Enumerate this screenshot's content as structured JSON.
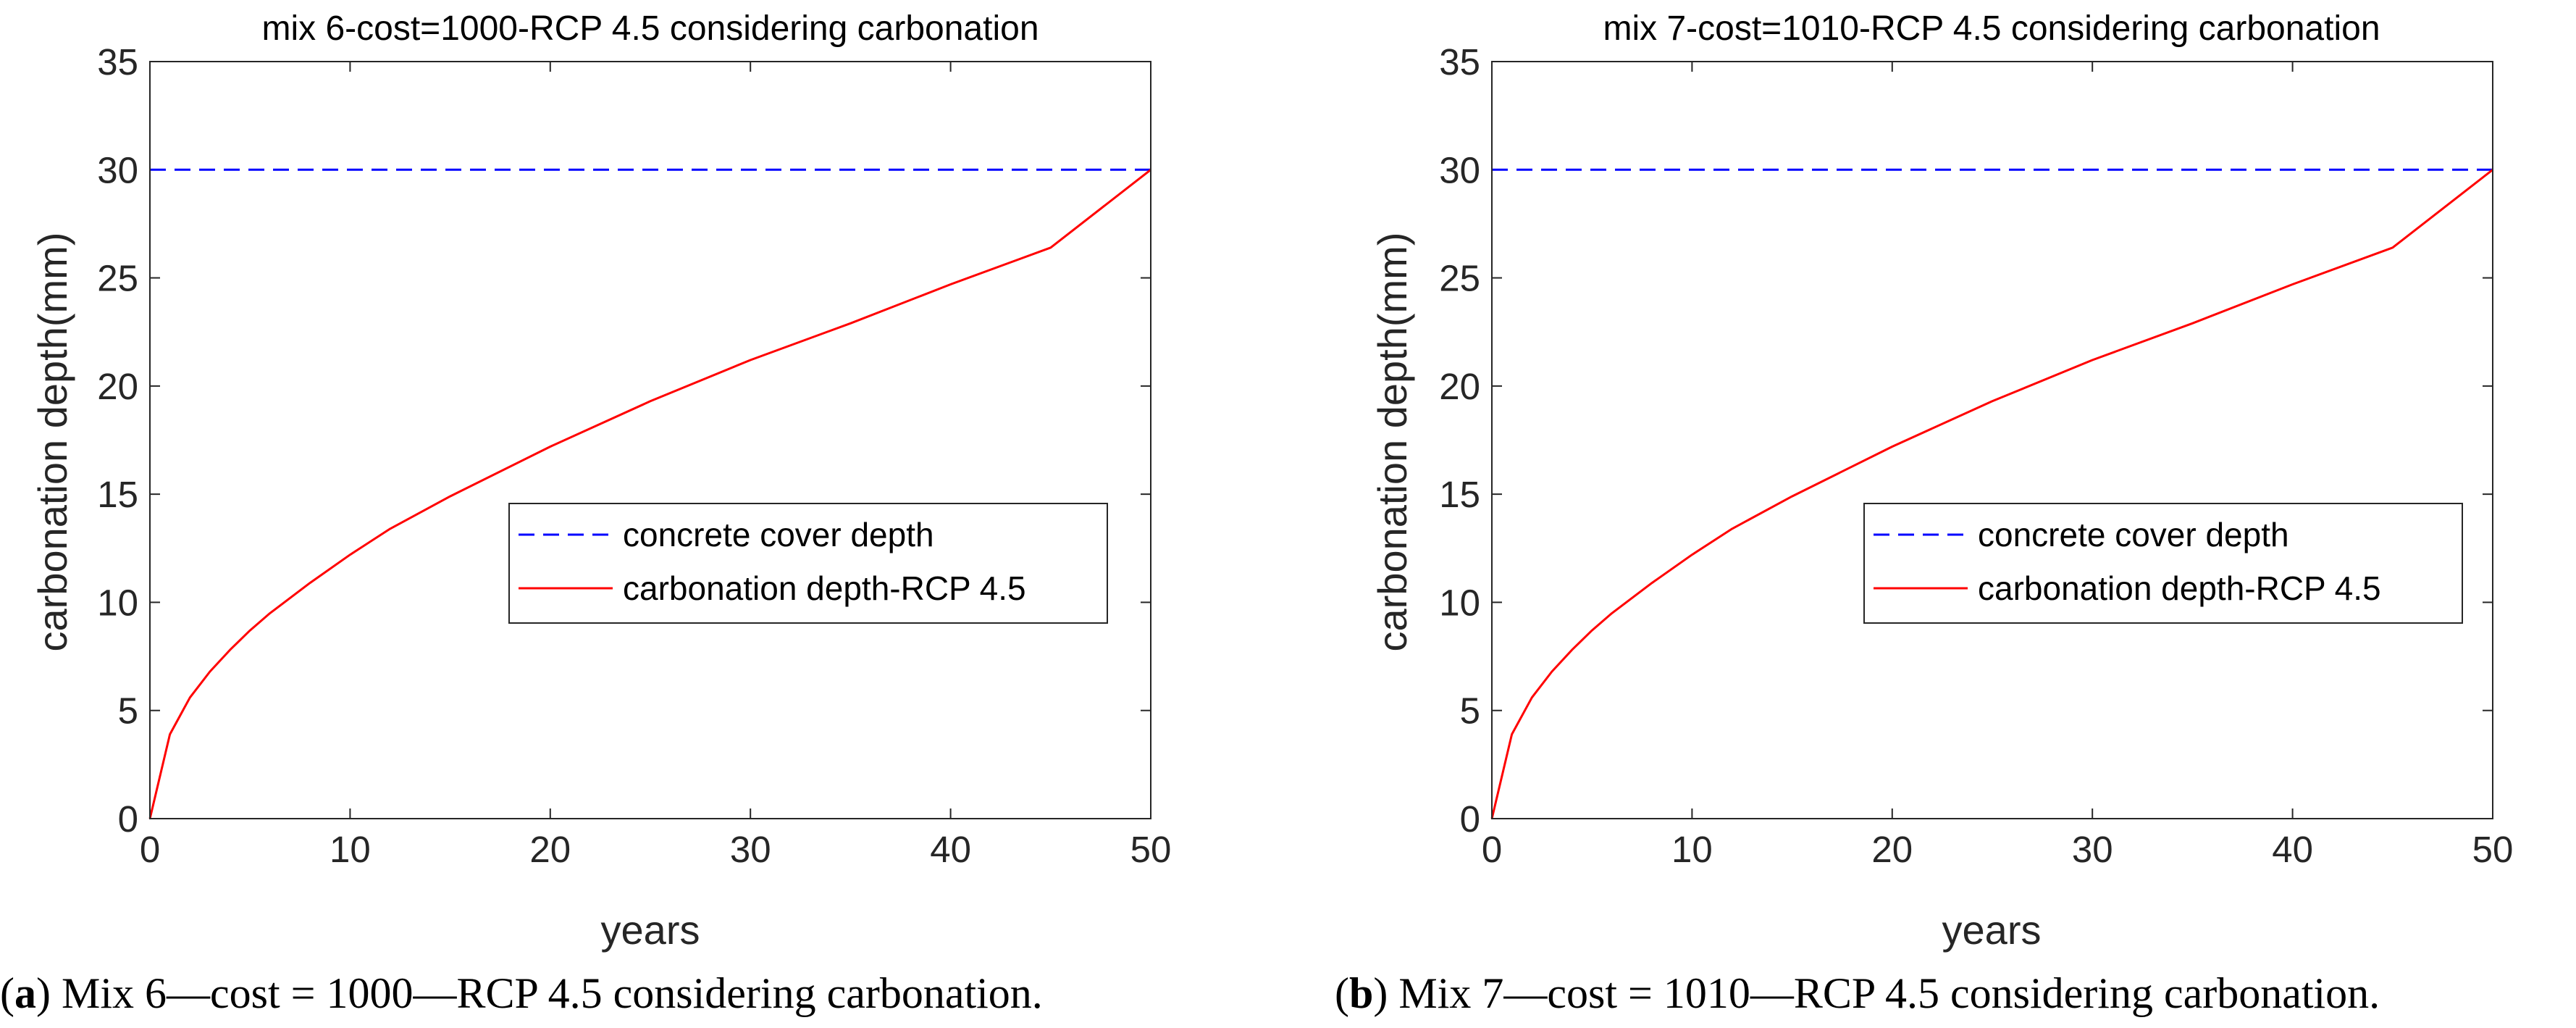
{
  "chart_data": [
    {
      "type": "line",
      "title": "mix 6-cost=1000-RCP 4.5 considering carbonation",
      "xlabel": "years",
      "ylabel": "carbonation depth(mm)",
      "xlim": [
        0,
        50
      ],
      "ylim": [
        0,
        35
      ],
      "xticks": [
        "0",
        "10",
        "20",
        "30",
        "40",
        "50"
      ],
      "yticks": [
        "0",
        "5",
        "10",
        "15",
        "20",
        "25",
        "30",
        "35"
      ],
      "grid": false,
      "legend_position": "center-right",
      "series": [
        {
          "name": "concrete cover depth",
          "style": "dashed",
          "color": "#0000ff",
          "x": [
            0,
            50
          ],
          "y": [
            30,
            30
          ]
        },
        {
          "name": "carbonation depth-RCP 4.5",
          "style": "solid",
          "color": "#ff0000",
          "x": [
            0,
            1,
            2,
            3,
            4,
            5,
            6,
            8,
            10,
            12,
            15,
            20,
            25,
            30,
            35,
            40,
            45,
            50
          ],
          "y": [
            0,
            3.9,
            5.6,
            6.8,
            7.8,
            8.7,
            9.5,
            10.9,
            12.2,
            13.4,
            14.9,
            17.2,
            19.3,
            21.2,
            22.9,
            24.7,
            26.4,
            30.0
          ]
        }
      ]
    },
    {
      "type": "line",
      "title": "mix 7-cost=1010-RCP 4.5 considering carbonation",
      "xlabel": "years",
      "ylabel": "carbonation depth(mm)",
      "xlim": [
        0,
        50
      ],
      "ylim": [
        0,
        35
      ],
      "xticks": [
        "0",
        "10",
        "20",
        "30",
        "40",
        "50"
      ],
      "yticks": [
        "0",
        "5",
        "10",
        "15",
        "20",
        "25",
        "30",
        "35"
      ],
      "grid": false,
      "legend_position": "center-right",
      "series": [
        {
          "name": "concrete cover depth",
          "style": "dashed",
          "color": "#0000ff",
          "x": [
            0,
            50
          ],
          "y": [
            30,
            30
          ]
        },
        {
          "name": "carbonation depth-RCP 4.5",
          "style": "solid",
          "color": "#ff0000",
          "x": [
            0,
            1,
            2,
            3,
            4,
            5,
            6,
            8,
            10,
            12,
            15,
            20,
            25,
            30,
            35,
            40,
            45,
            50
          ],
          "y": [
            0,
            3.9,
            5.6,
            6.8,
            7.8,
            8.7,
            9.5,
            10.9,
            12.2,
            13.4,
            14.9,
            17.2,
            19.3,
            21.2,
            22.9,
            24.7,
            26.4,
            30.0
          ]
        }
      ]
    }
  ],
  "captions": [
    {
      "label": "a",
      "text": ") Mix 6—cost = 1000—RCP 4.5 considering carbonation."
    },
    {
      "label": "b",
      "text": ") Mix 7—cost = 1010—RCP 4.5 considering carbonation."
    }
  ]
}
